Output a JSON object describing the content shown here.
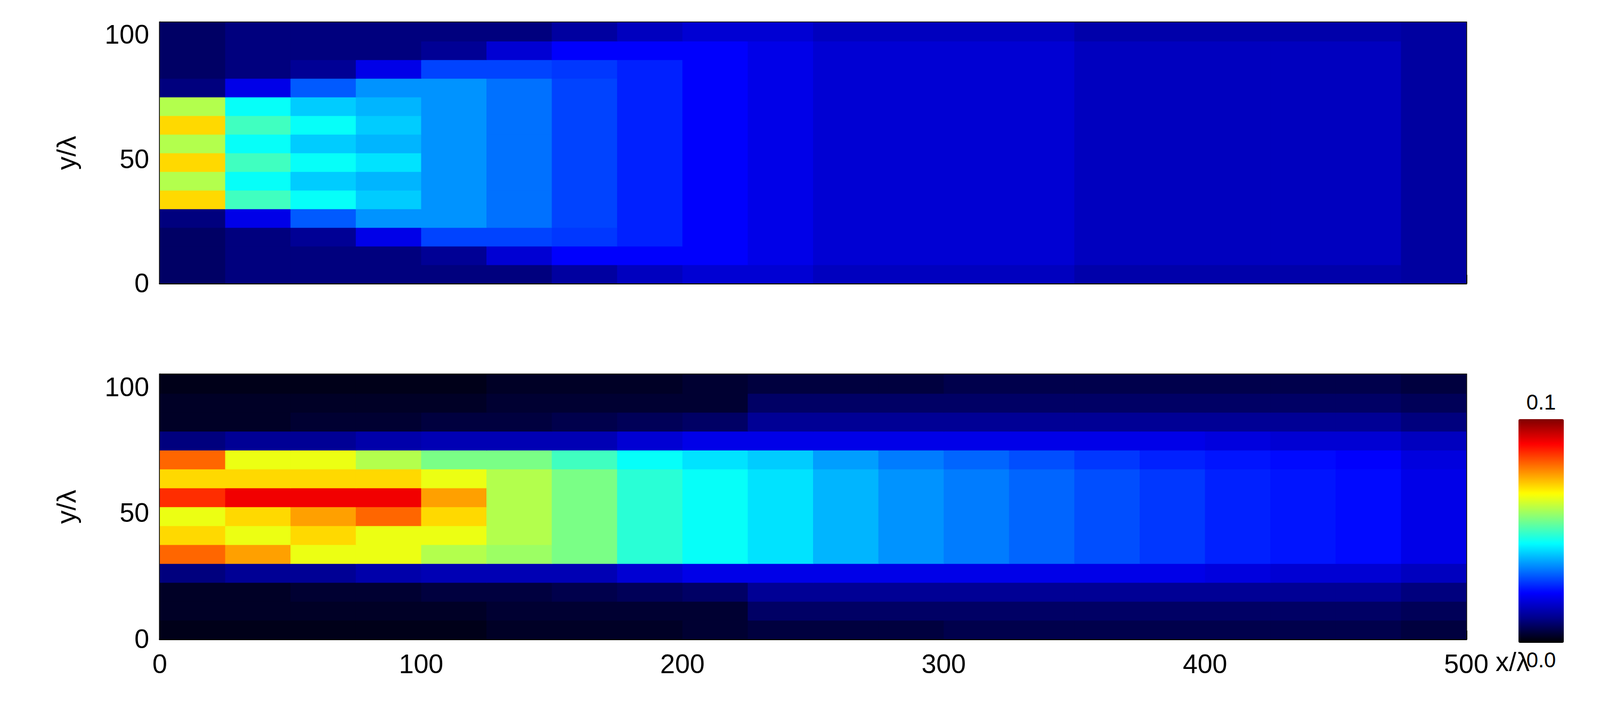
{
  "chart_data": [
    {
      "type": "heatmap",
      "x_bins": [
        0,
        25,
        50,
        75,
        100,
        125,
        150,
        175,
        200,
        225,
        250,
        275,
        300,
        325,
        350,
        375,
        400,
        425,
        450,
        475,
        500
      ],
      "y_bins": [
        0,
        7.5,
        15,
        22.5,
        30,
        37.5,
        45,
        52.5,
        60,
        67.5,
        75,
        82.5,
        90,
        97.5,
        105
      ],
      "z": [
        [
          0.008,
          0.01,
          0.01,
          0.01,
          0.01,
          0.01,
          0.013,
          0.016,
          0.018,
          0.018,
          0.016,
          0.016,
          0.016,
          0.016,
          0.014,
          0.014,
          0.014,
          0.014,
          0.014,
          0.013
        ],
        [
          0.008,
          0.01,
          0.01,
          0.01,
          0.012,
          0.018,
          0.022,
          0.022,
          0.022,
          0.02,
          0.018,
          0.018,
          0.018,
          0.018,
          0.016,
          0.016,
          0.016,
          0.016,
          0.016,
          0.013
        ],
        [
          0.008,
          0.01,
          0.012,
          0.02,
          0.028,
          0.028,
          0.027,
          0.025,
          0.022,
          0.02,
          0.018,
          0.018,
          0.018,
          0.018,
          0.016,
          0.016,
          0.016,
          0.016,
          0.016,
          0.013
        ],
        [
          0.01,
          0.02,
          0.03,
          0.035,
          0.035,
          0.032,
          0.028,
          0.025,
          0.022,
          0.02,
          0.018,
          0.018,
          0.018,
          0.018,
          0.016,
          0.016,
          0.016,
          0.016,
          0.016,
          0.013
        ],
        [
          0.07,
          0.05,
          0.045,
          0.04,
          0.035,
          0.032,
          0.028,
          0.025,
          0.022,
          0.02,
          0.018,
          0.018,
          0.018,
          0.018,
          0.016,
          0.016,
          0.016,
          0.016,
          0.016,
          0.013
        ],
        [
          0.06,
          0.045,
          0.04,
          0.038,
          0.035,
          0.032,
          0.028,
          0.025,
          0.022,
          0.02,
          0.018,
          0.018,
          0.018,
          0.018,
          0.016,
          0.016,
          0.016,
          0.016,
          0.016,
          0.013
        ],
        [
          0.07,
          0.05,
          0.045,
          0.042,
          0.035,
          0.032,
          0.028,
          0.025,
          0.022,
          0.02,
          0.018,
          0.018,
          0.018,
          0.018,
          0.016,
          0.016,
          0.016,
          0.016,
          0.016,
          0.013
        ],
        [
          0.06,
          0.045,
          0.04,
          0.038,
          0.035,
          0.032,
          0.028,
          0.025,
          0.022,
          0.02,
          0.018,
          0.018,
          0.018,
          0.018,
          0.016,
          0.016,
          0.016,
          0.016,
          0.016,
          0.013
        ],
        [
          0.07,
          0.05,
          0.045,
          0.04,
          0.035,
          0.032,
          0.028,
          0.025,
          0.022,
          0.02,
          0.018,
          0.018,
          0.018,
          0.018,
          0.016,
          0.016,
          0.016,
          0.016,
          0.016,
          0.013
        ],
        [
          0.06,
          0.045,
          0.04,
          0.038,
          0.035,
          0.032,
          0.028,
          0.025,
          0.022,
          0.02,
          0.018,
          0.018,
          0.018,
          0.018,
          0.016,
          0.016,
          0.016,
          0.016,
          0.016,
          0.013
        ],
        [
          0.01,
          0.02,
          0.03,
          0.035,
          0.035,
          0.032,
          0.028,
          0.025,
          0.022,
          0.02,
          0.018,
          0.018,
          0.018,
          0.018,
          0.016,
          0.016,
          0.016,
          0.016,
          0.016,
          0.013
        ],
        [
          0.008,
          0.01,
          0.012,
          0.02,
          0.028,
          0.028,
          0.027,
          0.025,
          0.022,
          0.02,
          0.018,
          0.018,
          0.018,
          0.018,
          0.016,
          0.016,
          0.016,
          0.016,
          0.016,
          0.013
        ],
        [
          0.008,
          0.01,
          0.01,
          0.01,
          0.012,
          0.018,
          0.022,
          0.022,
          0.022,
          0.02,
          0.018,
          0.018,
          0.018,
          0.018,
          0.016,
          0.016,
          0.016,
          0.016,
          0.016,
          0.013
        ],
        [
          0.008,
          0.01,
          0.01,
          0.01,
          0.01,
          0.01,
          0.013,
          0.016,
          0.018,
          0.018,
          0.016,
          0.016,
          0.016,
          0.016,
          0.014,
          0.014,
          0.014,
          0.014,
          0.014,
          0.013
        ]
      ],
      "xlim": [
        0,
        500
      ],
      "ylim": [
        0,
        105
      ],
      "xticks": [
        0,
        100,
        200,
        300,
        400,
        500
      ],
      "yticks": [
        0,
        50,
        100
      ],
      "y_label": "y/λ",
      "tick_labels": "y"
    },
    {
      "type": "heatmap",
      "x_bins": [
        0,
        25,
        50,
        75,
        100,
        125,
        150,
        175,
        200,
        225,
        250,
        275,
        300,
        325,
        350,
        375,
        400,
        425,
        450,
        475,
        500
      ],
      "y_bins": [
        0,
        7.5,
        15,
        22.5,
        30,
        37.5,
        45,
        52.5,
        60,
        67.5,
        75,
        82.5,
        90,
        97.5,
        105
      ],
      "z": [
        [
          0.002,
          0.002,
          0.002,
          0.002,
          0.002,
          0.003,
          0.003,
          0.003,
          0.004,
          0.005,
          0.005,
          0.005,
          0.006,
          0.006,
          0.006,
          0.006,
          0.006,
          0.006,
          0.006,
          0.005
        ],
        [
          0.003,
          0.003,
          0.003,
          0.003,
          0.003,
          0.004,
          0.004,
          0.004,
          0.004,
          0.008,
          0.008,
          0.008,
          0.008,
          0.008,
          0.008,
          0.008,
          0.008,
          0.008,
          0.008,
          0.007
        ],
        [
          0.003,
          0.003,
          0.004,
          0.004,
          0.005,
          0.005,
          0.006,
          0.007,
          0.008,
          0.012,
          0.012,
          0.012,
          0.012,
          0.012,
          0.012,
          0.012,
          0.012,
          0.012,
          0.012,
          0.01
        ],
        [
          0.01,
          0.012,
          0.012,
          0.014,
          0.015,
          0.015,
          0.015,
          0.018,
          0.02,
          0.02,
          0.02,
          0.02,
          0.02,
          0.02,
          0.02,
          0.02,
          0.019,
          0.018,
          0.018,
          0.016
        ],
        [
          0.08,
          0.075,
          0.065,
          0.065,
          0.06,
          0.058,
          0.055,
          0.048,
          0.045,
          0.042,
          0.038,
          0.035,
          0.033,
          0.031,
          0.029,
          0.027,
          0.025,
          0.024,
          0.023,
          0.02
        ],
        [
          0.07,
          0.065,
          0.07,
          0.065,
          0.065,
          0.06,
          0.055,
          0.048,
          0.045,
          0.042,
          0.038,
          0.035,
          0.033,
          0.031,
          0.029,
          0.027,
          0.025,
          0.024,
          0.023,
          0.02
        ],
        [
          0.065,
          0.07,
          0.075,
          0.08,
          0.07,
          0.06,
          0.055,
          0.048,
          0.045,
          0.042,
          0.038,
          0.035,
          0.033,
          0.031,
          0.029,
          0.027,
          0.025,
          0.024,
          0.023,
          0.02
        ],
        [
          0.085,
          0.09,
          0.09,
          0.09,
          0.075,
          0.06,
          0.055,
          0.048,
          0.045,
          0.042,
          0.038,
          0.035,
          0.033,
          0.031,
          0.029,
          0.027,
          0.025,
          0.024,
          0.023,
          0.02
        ],
        [
          0.07,
          0.07,
          0.07,
          0.07,
          0.065,
          0.06,
          0.055,
          0.048,
          0.045,
          0.042,
          0.038,
          0.035,
          0.033,
          0.031,
          0.029,
          0.027,
          0.025,
          0.024,
          0.023,
          0.02
        ],
        [
          0.08,
          0.065,
          0.065,
          0.06,
          0.055,
          0.055,
          0.05,
          0.045,
          0.042,
          0.04,
          0.036,
          0.033,
          0.031,
          0.029,
          0.027,
          0.025,
          0.024,
          0.023,
          0.022,
          0.019
        ],
        [
          0.01,
          0.012,
          0.012,
          0.014,
          0.015,
          0.015,
          0.015,
          0.018,
          0.02,
          0.02,
          0.02,
          0.02,
          0.02,
          0.02,
          0.02,
          0.02,
          0.019,
          0.018,
          0.018,
          0.016
        ],
        [
          0.003,
          0.003,
          0.004,
          0.004,
          0.005,
          0.005,
          0.006,
          0.007,
          0.008,
          0.012,
          0.012,
          0.012,
          0.012,
          0.012,
          0.012,
          0.012,
          0.012,
          0.012,
          0.012,
          0.01
        ],
        [
          0.003,
          0.003,
          0.003,
          0.003,
          0.003,
          0.004,
          0.004,
          0.004,
          0.004,
          0.008,
          0.008,
          0.008,
          0.008,
          0.008,
          0.008,
          0.008,
          0.008,
          0.008,
          0.008,
          0.007
        ],
        [
          0.002,
          0.002,
          0.002,
          0.002,
          0.002,
          0.003,
          0.003,
          0.003,
          0.004,
          0.005,
          0.005,
          0.005,
          0.006,
          0.006,
          0.006,
          0.006,
          0.006,
          0.006,
          0.006,
          0.005
        ]
      ],
      "xlim": [
        0,
        500
      ],
      "ylim": [
        0,
        105
      ],
      "xticks": [
        0,
        100,
        200,
        300,
        400,
        500
      ],
      "yticks": [
        0,
        50,
        100
      ],
      "x_label": "x/λ",
      "y_label": "y/λ",
      "colorbar": {
        "range": [
          0,
          0.1
        ],
        "ticks": [
          {
            "value": 0,
            "label": "0.0"
          },
          0.1
        ]
      }
    }
  ]
}
